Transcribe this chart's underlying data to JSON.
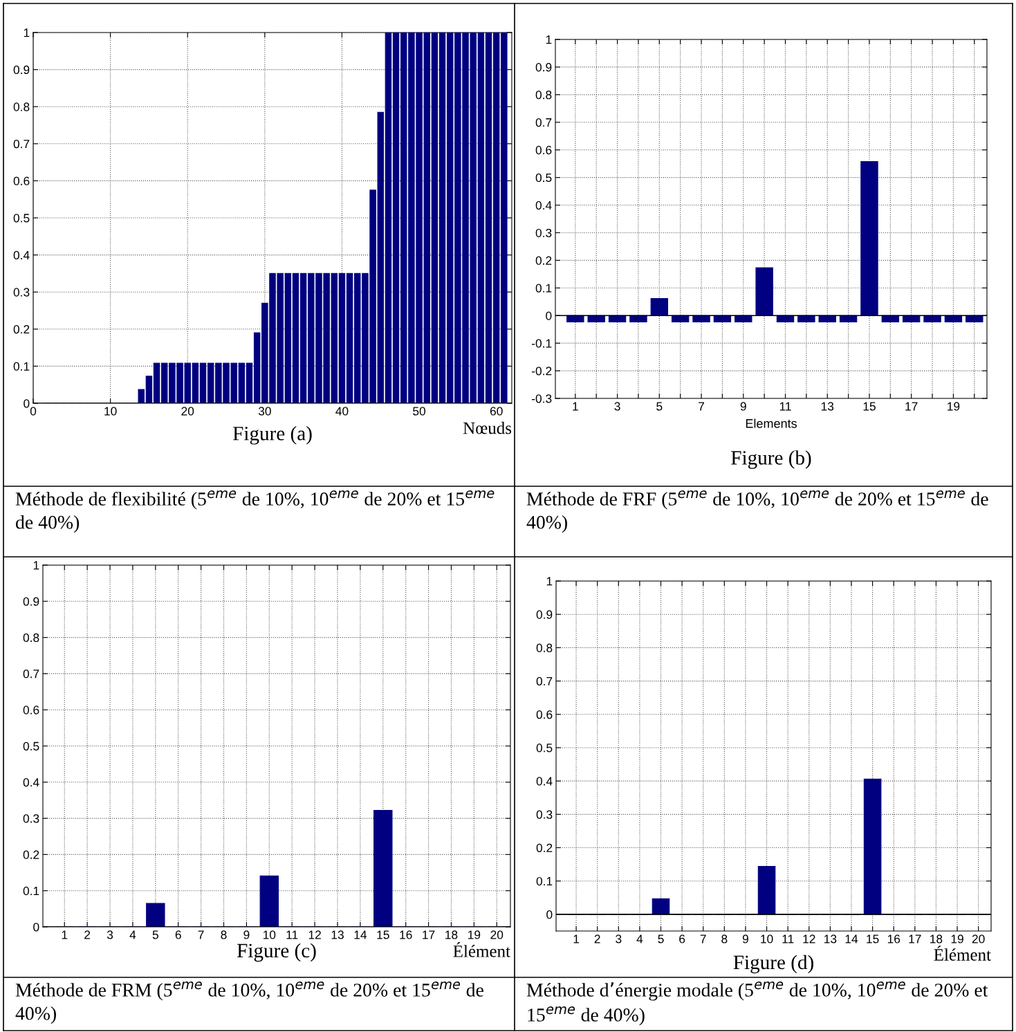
{
  "chart_data": [
    {
      "type": "bar",
      "title": "Figure (a)",
      "xlabel": "Nœuds",
      "x": [
        2,
        3,
        4,
        5,
        6,
        7,
        8,
        9,
        10,
        11,
        12,
        13,
        14,
        15,
        16,
        17,
        18,
        19,
        20,
        21,
        22,
        23,
        24,
        25,
        26,
        27,
        28,
        29,
        30,
        31,
        32,
        33,
        34,
        35,
        36,
        37,
        38,
        39,
        40,
        41,
        42,
        43,
        44,
        45,
        46,
        47,
        48,
        49,
        50,
        51,
        52,
        53,
        54,
        55,
        56,
        57,
        58,
        59,
        60,
        61
      ],
      "values": [
        0,
        0,
        0,
        0,
        0,
        0,
        0,
        0,
        0,
        0,
        0,
        0,
        0.037,
        0.073,
        0.108,
        0.108,
        0.108,
        0.108,
        0.108,
        0.108,
        0.108,
        0.108,
        0.108,
        0.108,
        0.108,
        0.108,
        0.108,
        0.19,
        0.27,
        0.35,
        0.35,
        0.35,
        0.35,
        0.35,
        0.35,
        0.35,
        0.35,
        0.35,
        0.35,
        0.35,
        0.35,
        0.35,
        0.575,
        0.785,
        1,
        1,
        1,
        1,
        1,
        1,
        1,
        1,
        1,
        1,
        1,
        1,
        1,
        1,
        1,
        1
      ],
      "color": "#000080",
      "xlim": [
        0,
        62
      ],
      "xticks": [
        0,
        10,
        20,
        30,
        40,
        50,
        60
      ],
      "ylim": [
        0,
        1
      ],
      "yticks": [
        0,
        0.1,
        0.2,
        0.3,
        0.4,
        0.5,
        0.6,
        0.7,
        0.8,
        0.9,
        1
      ],
      "grid": true,
      "annotations": [
        "Méthode de flexibilité (5$^{eme}$ de 10%, 10$^{eme}$ de 20% et 15$^{eme}$ de 40%)"
      ]
    },
    {
      "type": "bar",
      "title": "Figure (b)",
      "xlabel": "Elements",
      "categories": [
        "1",
        null,
        "3",
        null,
        "5",
        null,
        "7",
        null,
        "9",
        null,
        "11",
        null,
        "13",
        null,
        "15",
        null,
        "17",
        null,
        "19",
        null
      ],
      "values": [
        -0.023,
        -0.023,
        -0.023,
        -0.023,
        0.062,
        -0.023,
        -0.023,
        -0.023,
        -0.023,
        0.173,
        -0.023,
        -0.023,
        -0.023,
        -0.023,
        0.558,
        -0.023,
        -0.023,
        -0.023,
        -0.023,
        -0.023
      ],
      "color": "#000080",
      "ylim": [
        -0.3,
        1
      ],
      "yticks": [
        -0.3,
        -0.2,
        -0.1,
        0,
        0.1,
        0.2,
        0.3,
        0.4,
        0.5,
        0.6,
        0.7,
        0.8,
        0.9,
        1
      ],
      "grid": true,
      "annotations": [
        "Méthode de FRF (5$^{eme}$ de 10%, 10$^{eme}$ de 20% et 15$^{eme}$ de 40%)"
      ]
    },
    {
      "type": "bar",
      "title": "Figure (c)",
      "xlabel": "Élément",
      "categories": [
        "1",
        "2",
        "3",
        "4",
        "5",
        "6",
        "7",
        "8",
        "9",
        "10",
        "11",
        "12",
        "13",
        "14",
        "15",
        "16",
        "17",
        "18",
        "19",
        "20"
      ],
      "values": [
        0,
        0,
        0,
        0,
        0.065,
        0,
        0,
        0,
        0,
        0.141,
        0,
        0,
        0,
        0,
        0.322,
        0,
        0,
        0,
        0,
        0
      ],
      "color": "#000080",
      "ylim": [
        0,
        1
      ],
      "yticks": [
        0,
        0.1,
        0.2,
        0.3,
        0.4,
        0.5,
        0.6,
        0.7,
        0.8,
        0.9,
        1
      ],
      "grid": true,
      "annotations": [
        "Méthode de FRM (5$^{eme}$ de 10%, 10$^{eme}$ de 20% et 15$^{eme}$ de 40%)"
      ]
    },
    {
      "type": "bar",
      "title": "Figure (d)",
      "xlabel": "Élément",
      "categories": [
        "1",
        "2",
        "3",
        "4",
        "5",
        "6",
        "7",
        "8",
        "9",
        "10",
        "11",
        "12",
        "13",
        "14",
        "15",
        "16",
        "17",
        "18",
        "19",
        "20"
      ],
      "values": [
        0,
        0,
        0,
        0,
        0.047,
        0,
        0,
        0,
        0,
        0.144,
        0,
        0,
        0,
        0,
        0.406,
        0,
        0,
        0,
        0,
        0
      ],
      "color": "#000080",
      "ylim": [
        -0.05,
        1
      ],
      "yticks": [
        0,
        0.1,
        0.2,
        0.3,
        0.4,
        0.5,
        0.6,
        0.7,
        0.8,
        0.9,
        1
      ],
      "grid": true,
      "annotations": [
        "Méthode d’énergie modale (5$^{eme}$ de 10%, 10$^{eme}$ de 20% et 15$^{eme}$ de 40%)"
      ]
    }
  ]
}
